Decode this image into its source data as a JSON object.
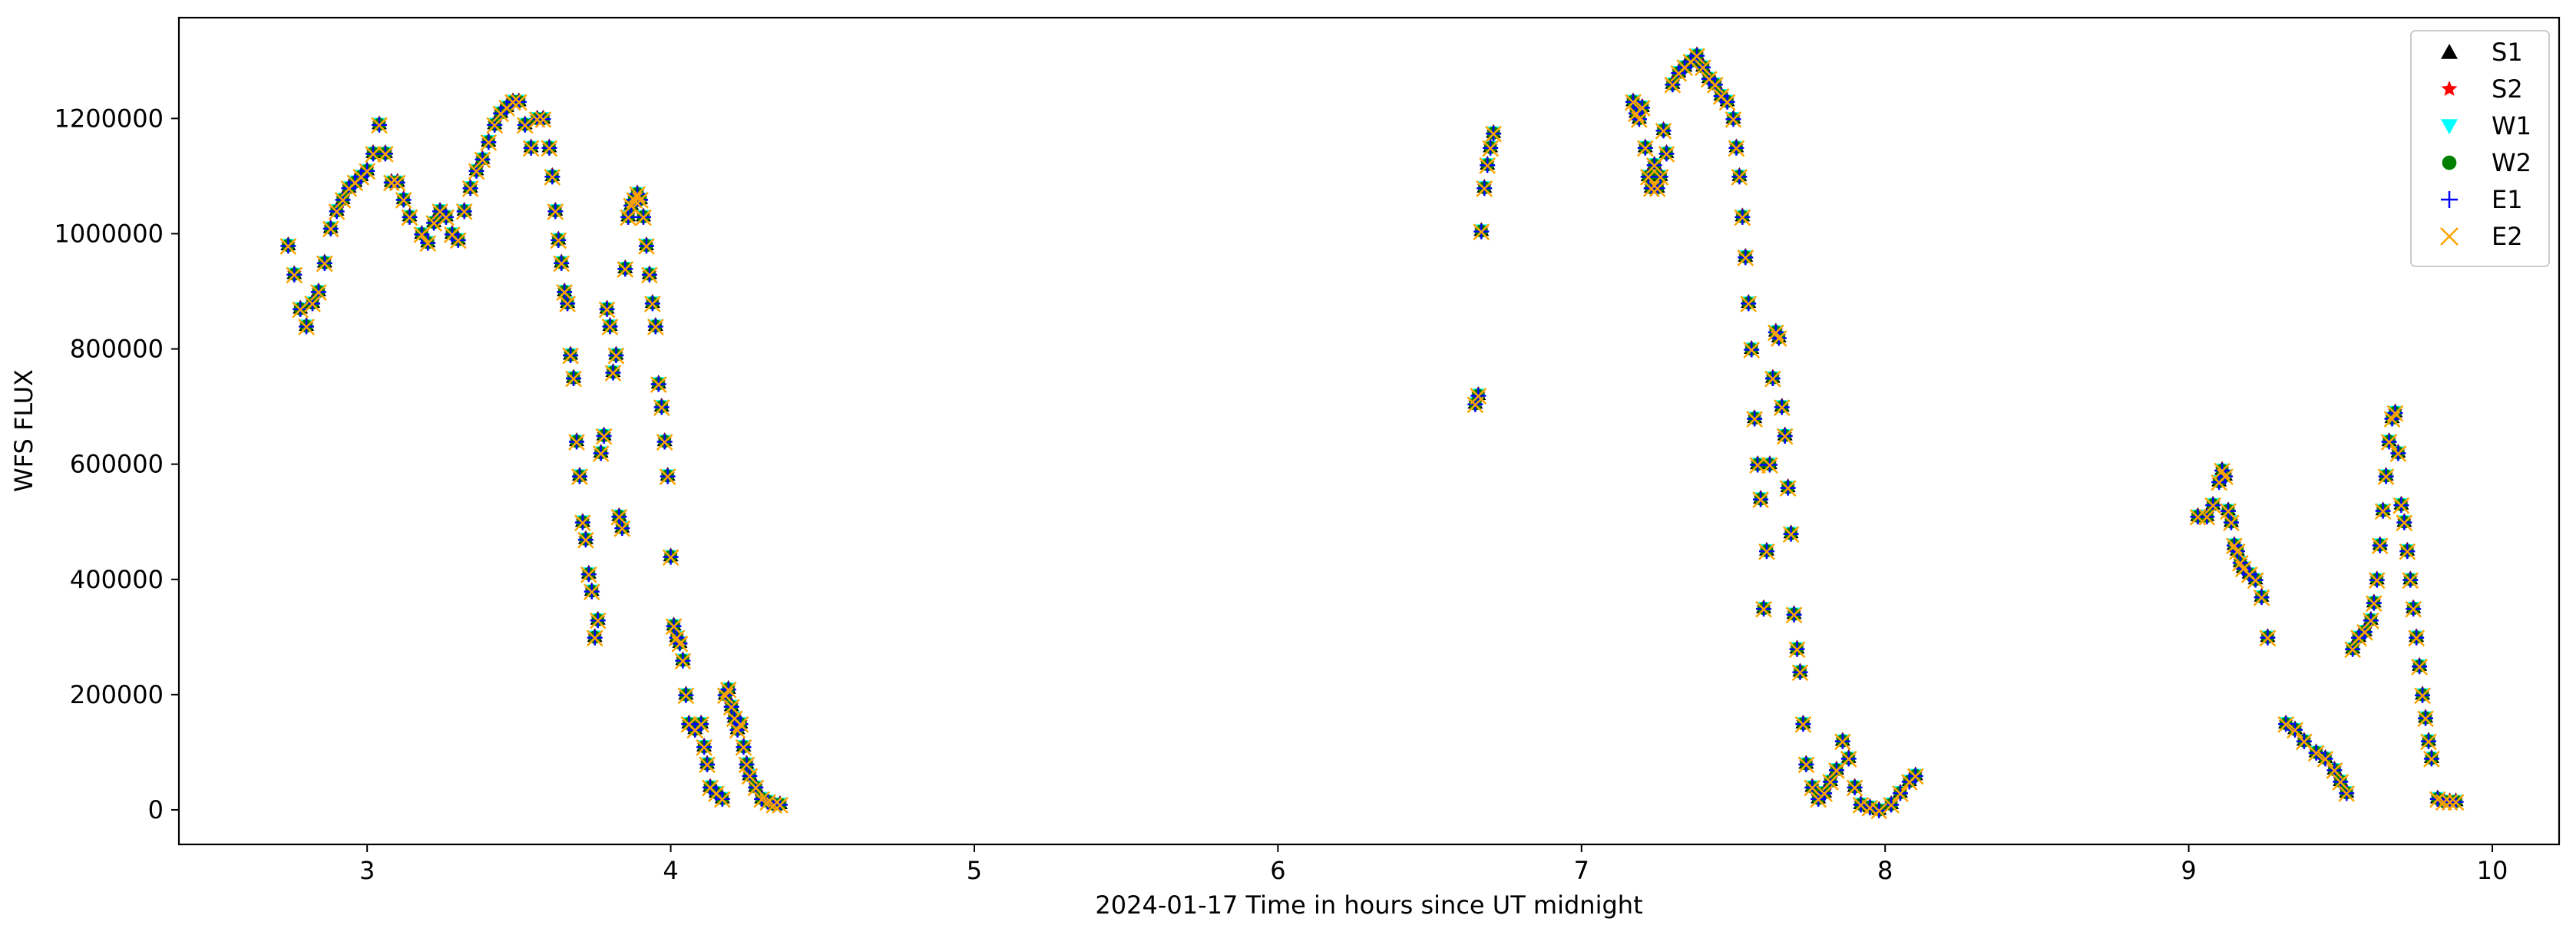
{
  "chart_data": {
    "type": "scatter",
    "xlabel": "2024-01-17  Time in hours since UT midnight",
    "ylabel": "WFS FLUX",
    "xlim": [
      2.38,
      10.22
    ],
    "ylim": [
      -60000,
      1375000
    ],
    "xticks": [
      3,
      4,
      5,
      6,
      7,
      8,
      9,
      10
    ],
    "yticks": [
      0,
      200000,
      400000,
      600000,
      800000,
      1000000,
      1200000
    ],
    "grid": false,
    "legend_position": "top-right",
    "markers_overlap": true,
    "series": [
      {
        "name": "S1",
        "color": "#000000",
        "marker": "triangle-up"
      },
      {
        "name": "S2",
        "color": "#ff0000",
        "marker": "star"
      },
      {
        "name": "W1",
        "color": "#00ffff",
        "marker": "triangle-down"
      },
      {
        "name": "W2",
        "color": "#008000",
        "marker": "circle"
      },
      {
        "name": "E1",
        "color": "#0000ff",
        "marker": "plus"
      },
      {
        "name": "E2",
        "color": "#ffa500",
        "marker": "x"
      }
    ],
    "points": [
      [
        2.74,
        980000
      ],
      [
        2.76,
        930000
      ],
      [
        2.78,
        870000
      ],
      [
        2.8,
        840000
      ],
      [
        2.82,
        880000
      ],
      [
        2.84,
        900000
      ],
      [
        2.86,
        950000
      ],
      [
        2.88,
        1010000
      ],
      [
        2.9,
        1040000
      ],
      [
        2.92,
        1060000
      ],
      [
        2.94,
        1080000
      ],
      [
        2.96,
        1090000
      ],
      [
        2.98,
        1100000
      ],
      [
        3.0,
        1110000
      ],
      [
        3.02,
        1140000
      ],
      [
        3.04,
        1190000
      ],
      [
        3.06,
        1140000
      ],
      [
        3.08,
        1090000
      ],
      [
        3.1,
        1090000
      ],
      [
        3.12,
        1060000
      ],
      [
        3.14,
        1030000
      ],
      [
        3.18,
        1000000
      ],
      [
        3.2,
        985000
      ],
      [
        3.22,
        1020000
      ],
      [
        3.24,
        1040000
      ],
      [
        3.26,
        1030000
      ],
      [
        3.28,
        1000000
      ],
      [
        3.3,
        990000
      ],
      [
        3.32,
        1040000
      ],
      [
        3.34,
        1080000
      ],
      [
        3.36,
        1110000
      ],
      [
        3.38,
        1130000
      ],
      [
        3.4,
        1160000
      ],
      [
        3.42,
        1190000
      ],
      [
        3.44,
        1210000
      ],
      [
        3.46,
        1220000
      ],
      [
        3.48,
        1230000
      ],
      [
        3.5,
        1230000
      ],
      [
        3.52,
        1190000
      ],
      [
        3.54,
        1150000
      ],
      [
        3.56,
        1200000
      ],
      [
        3.58,
        1200000
      ],
      [
        3.6,
        1150000
      ],
      [
        3.61,
        1100000
      ],
      [
        3.62,
        1040000
      ],
      [
        3.63,
        990000
      ],
      [
        3.64,
        950000
      ],
      [
        3.65,
        900000
      ],
      [
        3.66,
        880000
      ],
      [
        3.67,
        790000
      ],
      [
        3.68,
        750000
      ],
      [
        3.69,
        640000
      ],
      [
        3.7,
        580000
      ],
      [
        3.71,
        500000
      ],
      [
        3.72,
        470000
      ],
      [
        3.73,
        410000
      ],
      [
        3.74,
        380000
      ],
      [
        3.75,
        300000
      ],
      [
        3.76,
        330000
      ],
      [
        3.77,
        620000
      ],
      [
        3.78,
        650000
      ],
      [
        3.79,
        870000
      ],
      [
        3.8,
        840000
      ],
      [
        3.81,
        760000
      ],
      [
        3.82,
        790000
      ],
      [
        3.83,
        510000
      ],
      [
        3.84,
        490000
      ],
      [
        3.85,
        940000
      ],
      [
        3.86,
        1030000
      ],
      [
        3.87,
        1050000
      ],
      [
        3.88,
        1060000
      ],
      [
        3.89,
        1070000
      ],
      [
        3.9,
        1060000
      ],
      [
        3.91,
        1030000
      ],
      [
        3.92,
        980000
      ],
      [
        3.93,
        930000
      ],
      [
        3.94,
        880000
      ],
      [
        3.95,
        840000
      ],
      [
        3.96,
        740000
      ],
      [
        3.97,
        700000
      ],
      [
        3.98,
        640000
      ],
      [
        3.99,
        580000
      ],
      [
        4.0,
        440000
      ],
      [
        4.01,
        320000
      ],
      [
        4.02,
        300000
      ],
      [
        4.03,
        290000
      ],
      [
        4.04,
        260000
      ],
      [
        4.05,
        200000
      ],
      [
        4.06,
        150000
      ],
      [
        4.08,
        140000
      ],
      [
        4.1,
        150000
      ],
      [
        4.11,
        110000
      ],
      [
        4.12,
        80000
      ],
      [
        4.13,
        40000
      ],
      [
        4.15,
        30000
      ],
      [
        4.17,
        20000
      ],
      [
        4.18,
        200000
      ],
      [
        4.19,
        210000
      ],
      [
        4.2,
        180000
      ],
      [
        4.21,
        160000
      ],
      [
        4.22,
        140000
      ],
      [
        4.23,
        150000
      ],
      [
        4.24,
        110000
      ],
      [
        4.25,
        80000
      ],
      [
        4.26,
        60000
      ],
      [
        4.28,
        40000
      ],
      [
        4.3,
        20000
      ],
      [
        4.32,
        15000
      ],
      [
        4.34,
        10000
      ],
      [
        4.36,
        10000
      ],
      [
        6.65,
        705000
      ],
      [
        6.66,
        720000
      ],
      [
        6.67,
        1005000
      ],
      [
        6.68,
        1080000
      ],
      [
        6.69,
        1120000
      ],
      [
        6.7,
        1150000
      ],
      [
        6.71,
        1175000
      ],
      [
        7.17,
        1230000
      ],
      [
        7.18,
        1210000
      ],
      [
        7.19,
        1200000
      ],
      [
        7.2,
        1220000
      ],
      [
        7.21,
        1150000
      ],
      [
        7.22,
        1100000
      ],
      [
        7.23,
        1080000
      ],
      [
        7.24,
        1120000
      ],
      [
        7.25,
        1080000
      ],
      [
        7.26,
        1100000
      ],
      [
        7.27,
        1180000
      ],
      [
        7.28,
        1140000
      ],
      [
        7.3,
        1260000
      ],
      [
        7.32,
        1280000
      ],
      [
        7.34,
        1290000
      ],
      [
        7.36,
        1300000
      ],
      [
        7.38,
        1310000
      ],
      [
        7.4,
        1290000
      ],
      [
        7.42,
        1270000
      ],
      [
        7.44,
        1260000
      ],
      [
        7.46,
        1240000
      ],
      [
        7.48,
        1230000
      ],
      [
        7.5,
        1200000
      ],
      [
        7.51,
        1150000
      ],
      [
        7.52,
        1100000
      ],
      [
        7.53,
        1030000
      ],
      [
        7.54,
        960000
      ],
      [
        7.55,
        880000
      ],
      [
        7.56,
        800000
      ],
      [
        7.57,
        680000
      ],
      [
        7.58,
        600000
      ],
      [
        7.59,
        540000
      ],
      [
        7.6,
        350000
      ],
      [
        7.61,
        450000
      ],
      [
        7.62,
        600000
      ],
      [
        7.63,
        750000
      ],
      [
        7.64,
        830000
      ],
      [
        7.65,
        820000
      ],
      [
        7.66,
        700000
      ],
      [
        7.67,
        650000
      ],
      [
        7.68,
        560000
      ],
      [
        7.69,
        480000
      ],
      [
        7.7,
        340000
      ],
      [
        7.71,
        280000
      ],
      [
        7.72,
        240000
      ],
      [
        7.73,
        150000
      ],
      [
        7.74,
        80000
      ],
      [
        7.76,
        40000
      ],
      [
        7.78,
        20000
      ],
      [
        7.8,
        30000
      ],
      [
        7.82,
        50000
      ],
      [
        7.84,
        70000
      ],
      [
        7.86,
        120000
      ],
      [
        7.88,
        90000
      ],
      [
        7.9,
        40000
      ],
      [
        7.92,
        10000
      ],
      [
        7.95,
        5000
      ],
      [
        7.98,
        0
      ],
      [
        8.02,
        10000
      ],
      [
        8.05,
        30000
      ],
      [
        8.08,
        50000
      ],
      [
        8.1,
        60000
      ],
      [
        9.03,
        510000
      ],
      [
        9.06,
        510000
      ],
      [
        9.08,
        530000
      ],
      [
        9.1,
        570000
      ],
      [
        9.11,
        590000
      ],
      [
        9.12,
        580000
      ],
      [
        9.13,
        520000
      ],
      [
        9.14,
        500000
      ],
      [
        9.15,
        460000
      ],
      [
        9.16,
        450000
      ],
      [
        9.17,
        430000
      ],
      [
        9.18,
        420000
      ],
      [
        9.2,
        410000
      ],
      [
        9.22,
        400000
      ],
      [
        9.24,
        370000
      ],
      [
        9.26,
        300000
      ],
      [
        9.32,
        150000
      ],
      [
        9.35,
        140000
      ],
      [
        9.38,
        120000
      ],
      [
        9.42,
        100000
      ],
      [
        9.45,
        90000
      ],
      [
        9.48,
        70000
      ],
      [
        9.5,
        50000
      ],
      [
        9.52,
        30000
      ],
      [
        9.54,
        280000
      ],
      [
        9.56,
        300000
      ],
      [
        9.58,
        310000
      ],
      [
        9.6,
        330000
      ],
      [
        9.61,
        360000
      ],
      [
        9.62,
        400000
      ],
      [
        9.63,
        460000
      ],
      [
        9.64,
        520000
      ],
      [
        9.65,
        580000
      ],
      [
        9.66,
        640000
      ],
      [
        9.67,
        680000
      ],
      [
        9.68,
        690000
      ],
      [
        9.69,
        620000
      ],
      [
        9.7,
        530000
      ],
      [
        9.71,
        500000
      ],
      [
        9.72,
        450000
      ],
      [
        9.73,
        400000
      ],
      [
        9.74,
        350000
      ],
      [
        9.75,
        300000
      ],
      [
        9.76,
        250000
      ],
      [
        9.77,
        200000
      ],
      [
        9.78,
        160000
      ],
      [
        9.79,
        120000
      ],
      [
        9.8,
        90000
      ],
      [
        9.82,
        20000
      ],
      [
        9.84,
        15000
      ],
      [
        9.86,
        15000
      ],
      [
        9.88,
        15000
      ]
    ]
  }
}
